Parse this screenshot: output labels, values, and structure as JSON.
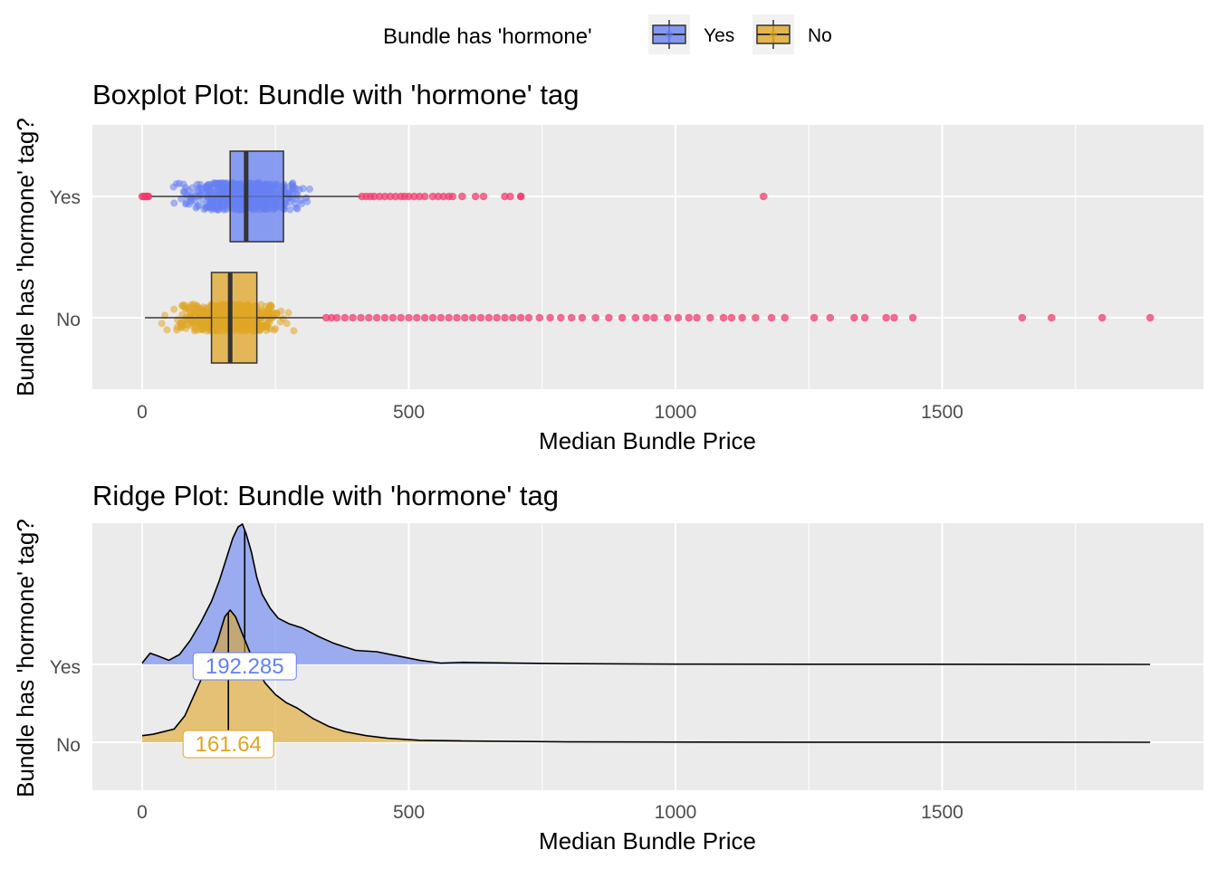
{
  "legend": {
    "title": "Bundle has 'hormone'",
    "position": "top",
    "items": [
      {
        "label": "Yes",
        "color": "#6680f2"
      },
      {
        "label": "No",
        "color": "#e0a526"
      }
    ]
  },
  "colors": {
    "yes": "#6680f2",
    "no": "#e0a526",
    "outlier": "#f03c6e",
    "panel": "#ebebeb",
    "grid": "#ffffff"
  },
  "chart_data": [
    {
      "type": "boxplot",
      "title": "Boxplot Plot: Bundle with 'hormone' tag",
      "xlabel": "Median Bundle Price",
      "ylabel": "Bundle has 'hormone' tag?",
      "xlim": [
        -90,
        1990
      ],
      "x_ticks": [
        "0",
        "500",
        "1000",
        "1500"
      ],
      "grid": true,
      "categories": [
        "Yes",
        "No"
      ],
      "series": [
        {
          "name": "Yes",
          "whisker_low": 5,
          "q1": 165,
          "median": 195,
          "q3": 265,
          "whisker_high": 410,
          "jitter_range": [
            40,
            345
          ],
          "outliers": [
            0,
            3,
            6,
            8,
            10,
            12,
            412,
            420,
            428,
            435,
            445,
            455,
            465,
            475,
            485,
            492,
            500,
            510,
            520,
            530,
            545,
            555,
            565,
            575,
            582,
            600,
            625,
            640,
            680,
            690,
            710,
            710,
            1165
          ]
        },
        {
          "name": "No",
          "whisker_low": 5,
          "q1": 130,
          "median": 165,
          "q3": 215,
          "whisker_high": 340,
          "jitter_range": [
            30,
            300
          ],
          "outliers": [
            345,
            355,
            365,
            380,
            395,
            410,
            425,
            440,
            455,
            470,
            485,
            500,
            515,
            530,
            545,
            560,
            575,
            590,
            605,
            620,
            635,
            650,
            665,
            680,
            695,
            710,
            725,
            745,
            765,
            785,
            805,
            825,
            850,
            875,
            900,
            925,
            945,
            960,
            985,
            1005,
            1025,
            1040,
            1065,
            1090,
            1105,
            1125,
            1150,
            1180,
            1205,
            1260,
            1290,
            1335,
            1355,
            1395,
            1410,
            1445,
            1650,
            1705,
            1800,
            1890
          ]
        }
      ]
    },
    {
      "type": "ridge",
      "title": "Ridge Plot: Bundle with 'hormone' tag",
      "xlabel": "Median Bundle Price",
      "ylabel": "Bundle has 'hormone' tag?",
      "xlim": [
        -90,
        1990
      ],
      "x_ticks": [
        "0",
        "500",
        "1000",
        "1500"
      ],
      "grid": true,
      "categories": [
        "Yes",
        "No"
      ],
      "series": [
        {
          "name": "Yes",
          "median_label": "192.285",
          "median": 192.285,
          "density": [
            [
              0,
              0.01
            ],
            [
              15,
              0.08
            ],
            [
              30,
              0.06
            ],
            [
              50,
              0.03
            ],
            [
              70,
              0.07
            ],
            [
              90,
              0.17
            ],
            [
              110,
              0.3
            ],
            [
              130,
              0.45
            ],
            [
              145,
              0.6
            ],
            [
              160,
              0.78
            ],
            [
              170,
              0.9
            ],
            [
              180,
              0.98
            ],
            [
              188,
              1.0
            ],
            [
              195,
              0.93
            ],
            [
              205,
              0.8
            ],
            [
              215,
              0.62
            ],
            [
              225,
              0.5
            ],
            [
              240,
              0.4
            ],
            [
              255,
              0.33
            ],
            [
              275,
              0.29
            ],
            [
              300,
              0.26
            ],
            [
              330,
              0.2
            ],
            [
              360,
              0.15
            ],
            [
              400,
              0.1
            ],
            [
              440,
              0.09
            ],
            [
              480,
              0.06
            ],
            [
              520,
              0.03
            ],
            [
              560,
              0.01
            ],
            [
              600,
              0.015
            ],
            [
              700,
              0.01
            ],
            [
              800,
              0.005
            ],
            [
              1000,
              0.002
            ],
            [
              1300,
              0.001
            ],
            [
              1890,
              0.0
            ]
          ]
        },
        {
          "name": "No",
          "median_label": "161.64",
          "median": 161.64,
          "density": [
            [
              0,
              0.05
            ],
            [
              20,
              0.06
            ],
            [
              40,
              0.08
            ],
            [
              60,
              0.1
            ],
            [
              80,
              0.2
            ],
            [
              100,
              0.38
            ],
            [
              120,
              0.56
            ],
            [
              140,
              0.75
            ],
            [
              155,
              0.95
            ],
            [
              165,
              1.0
            ],
            [
              175,
              0.95
            ],
            [
              190,
              0.8
            ],
            [
              210,
              0.6
            ],
            [
              230,
              0.45
            ],
            [
              250,
              0.36
            ],
            [
              270,
              0.3
            ],
            [
              290,
              0.26
            ],
            [
              320,
              0.18
            ],
            [
              350,
              0.12
            ],
            [
              380,
              0.08
            ],
            [
              420,
              0.05
            ],
            [
              460,
              0.03
            ],
            [
              520,
              0.015
            ],
            [
              600,
              0.01
            ],
            [
              800,
              0.003
            ],
            [
              1200,
              0.001
            ],
            [
              1890,
              0.0
            ]
          ]
        }
      ]
    }
  ]
}
